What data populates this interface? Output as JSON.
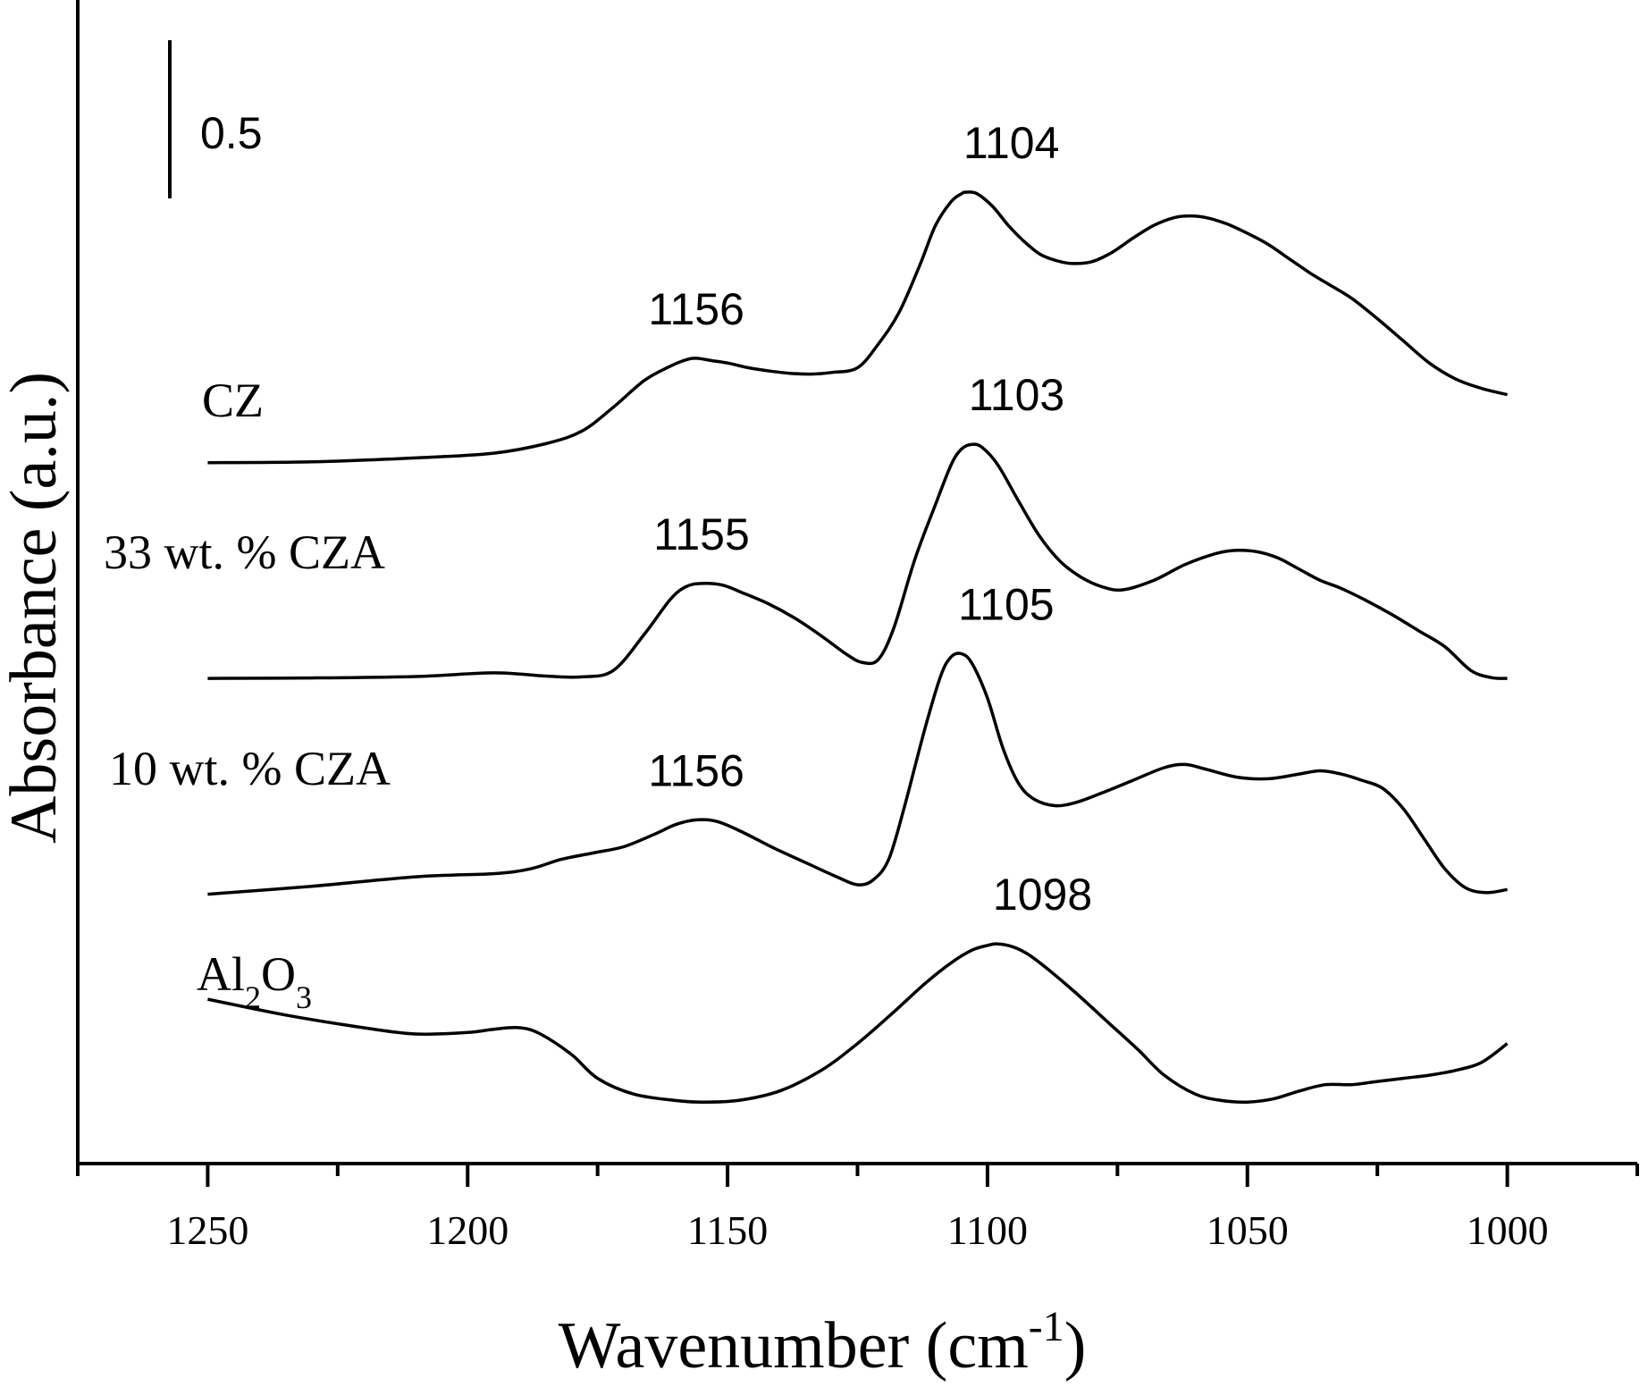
{
  "chart_data": {
    "type": "line",
    "title": "",
    "xlabel_main": "Wavenumber (cm",
    "xlabel_sup": "-1",
    "xlabel_close": ")",
    "ylabel": "Absorbance (a.u.)",
    "xlim": [
      1275,
      975
    ],
    "x_ticks": [
      1250,
      1200,
      1150,
      1100,
      1050,
      1000
    ],
    "x_tick_labels": [
      "1250",
      "1200",
      "1150",
      "1100",
      "1050",
      "1000"
    ],
    "scale_bar_label": "0.5",
    "scale_bar_value": 0.5,
    "series": [
      {
        "name": "CZ",
        "label": "CZ",
        "offset": 3.0,
        "peaks": [
          {
            "x": 1156,
            "label": "1156"
          },
          {
            "x": 1104,
            "label": "1104"
          }
        ],
        "x": [
          1250,
          1230,
          1210,
          1195,
          1185,
          1178,
          1172,
          1166,
          1161,
          1158,
          1156,
          1153,
          1150,
          1146,
          1142,
          1138,
          1134,
          1130,
          1125,
          1121,
          1117,
          1113,
          1110,
          1107,
          1105,
          1104,
          1102,
          1099,
          1096,
          1093,
          1090,
          1087,
          1084,
          1080,
          1076,
          1072,
          1068,
          1064,
          1061,
          1058,
          1054,
          1050,
          1046,
          1042,
          1038,
          1035,
          1030,
          1025,
          1020,
          1015,
          1010,
          1005,
          1000
        ],
        "y": [
          0.0,
          0.005,
          0.03,
          0.06,
          0.12,
          0.2,
          0.35,
          0.52,
          0.61,
          0.65,
          0.66,
          0.645,
          0.63,
          0.6,
          0.58,
          0.565,
          0.56,
          0.57,
          0.6,
          0.75,
          0.95,
          1.25,
          1.5,
          1.65,
          1.7,
          1.71,
          1.7,
          1.62,
          1.5,
          1.4,
          1.32,
          1.28,
          1.26,
          1.27,
          1.33,
          1.42,
          1.5,
          1.55,
          1.56,
          1.55,
          1.51,
          1.45,
          1.38,
          1.29,
          1.2,
          1.14,
          1.04,
          0.91,
          0.77,
          0.63,
          0.53,
          0.47,
          0.43
        ]
      },
      {
        "name": "33 wt. % CZA",
        "label": "33 wt. % CZA",
        "offset": 2.0,
        "peaks": [
          {
            "x": 1155,
            "label": "1155"
          },
          {
            "x": 1103,
            "label": "1103"
          }
        ],
        "x": [
          1250,
          1230,
          1210,
          1195,
          1185,
          1178,
          1172,
          1166,
          1161,
          1158,
          1155,
          1151,
          1147,
          1142,
          1137,
          1132,
          1127,
          1124,
          1121,
          1118,
          1114,
          1110,
          1107,
          1105,
          1103,
          1101,
          1098,
          1094,
          1090,
          1086,
          1082,
          1078,
          1074,
          1068,
          1062,
          1056,
          1052,
          1048,
          1044,
          1040,
          1036,
          1032,
          1027,
          1022,
          1017,
          1012,
          1007,
          1003,
          1000
        ],
        "y": [
          0.0,
          0.003,
          0.012,
          0.035,
          0.015,
          0.01,
          0.05,
          0.28,
          0.5,
          0.58,
          0.6,
          0.59,
          0.54,
          0.47,
          0.38,
          0.27,
          0.15,
          0.1,
          0.12,
          0.32,
          0.75,
          1.1,
          1.35,
          1.45,
          1.48,
          1.46,
          1.35,
          1.12,
          0.9,
          0.74,
          0.64,
          0.58,
          0.56,
          0.62,
          0.72,
          0.79,
          0.81,
          0.8,
          0.76,
          0.69,
          0.62,
          0.57,
          0.49,
          0.4,
          0.3,
          0.2,
          0.05,
          0.005,
          0.0
        ]
      },
      {
        "name": "10 wt. % CZA",
        "label": "10 wt. % CZA",
        "offset": 1.0,
        "peaks": [
          {
            "x": 1156,
            "label": "1156"
          },
          {
            "x": 1105,
            "label": "1105"
          }
        ],
        "x": [
          1250,
          1230,
          1210,
          1195,
          1188,
          1182,
          1176,
          1170,
          1164,
          1160,
          1156,
          1152,
          1147,
          1141,
          1135,
          1129,
          1125,
          1122,
          1119,
          1116,
          1112,
          1109,
          1107,
          1105,
          1103,
          1100,
          1097,
          1094,
          1091,
          1087,
          1083,
          1078,
          1072,
          1066,
          1062,
          1058,
          1052,
          1046,
          1040,
          1036,
          1032,
          1028,
          1024,
          1020,
          1016,
          1012,
          1008,
          1004,
          1000
        ],
        "y": [
          0.0,
          0.05,
          0.11,
          0.13,
          0.16,
          0.22,
          0.26,
          0.3,
          0.38,
          0.44,
          0.47,
          0.46,
          0.39,
          0.29,
          0.2,
          0.11,
          0.06,
          0.09,
          0.22,
          0.55,
          1.05,
          1.38,
          1.5,
          1.52,
          1.46,
          1.24,
          0.92,
          0.7,
          0.6,
          0.56,
          0.58,
          0.64,
          0.72,
          0.8,
          0.82,
          0.79,
          0.74,
          0.73,
          0.76,
          0.78,
          0.76,
          0.72,
          0.67,
          0.54,
          0.35,
          0.16,
          0.04,
          0.01,
          0.03
        ]
      },
      {
        "name": "Al2O3",
        "label_main": "Al",
        "label_sub1": "2",
        "label_mid": "O",
        "label_sub2": "3",
        "offset": 0.0,
        "peaks": [
          {
            "x": 1098,
            "label": "1098"
          }
        ],
        "x": [
          1250,
          1235,
          1220,
          1210,
          1200,
          1195,
          1190,
          1186,
          1180,
          1175,
          1168,
          1160,
          1155,
          1148,
          1140,
          1132,
          1125,
          1118,
          1112,
          1107,
          1103,
          1100,
          1098,
          1095,
          1092,
          1088,
          1083,
          1077,
          1071,
          1066,
          1060,
          1055,
          1050,
          1045,
          1040,
          1035,
          1030,
          1025,
          1020,
          1015,
          1010,
          1005,
          1000
        ],
        "y": [
          0.7,
          0.6,
          0.52,
          0.48,
          0.49,
          0.51,
          0.52,
          0.48,
          0.35,
          0.2,
          0.1,
          0.06,
          0.05,
          0.06,
          0.12,
          0.25,
          0.42,
          0.62,
          0.8,
          0.93,
          1.01,
          1.04,
          1.05,
          1.03,
          0.98,
          0.88,
          0.74,
          0.56,
          0.38,
          0.22,
          0.1,
          0.06,
          0.05,
          0.07,
          0.12,
          0.16,
          0.16,
          0.18,
          0.2,
          0.22,
          0.25,
          0.3,
          0.42
        ]
      }
    ]
  }
}
